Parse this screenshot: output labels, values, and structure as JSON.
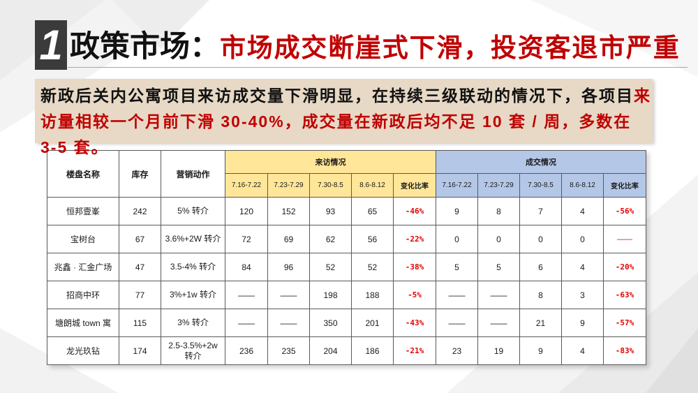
{
  "colors": {
    "red": "#c00000",
    "tan": "#e7d9c6",
    "visit_header": "#ffe699",
    "deal_header": "#b4c7e7",
    "dark": "#3b3b3b",
    "rate_red": "#e60000"
  },
  "header": {
    "number": "1",
    "title_black": "政策市场：",
    "title_red": "市场成交断崖式下滑，投资客退市严重"
  },
  "summary": {
    "line1_black": "新政后关内公寓项目来访成交量下滑明显，在持续三级联动的情况下，各项目",
    "line1_red": "来",
    "line2_red": "访量相较一个月前下滑 30-40%，成交量在新政后均不足 10 套 / 周，多数在",
    "line3_red": "3-5 套。"
  },
  "table": {
    "headers": {
      "name": "楼盘名称",
      "stock": "库存",
      "marketing": "营销动作",
      "visit_group": "来访情况",
      "deal_group": "成交情况",
      "periods": [
        "7.16-7.22",
        "7.23-7.29",
        "7.30-8.5",
        "8.6-8.12"
      ],
      "rate": "变化比率"
    },
    "rows": [
      {
        "name": "恒邦壹峯",
        "stock": "242",
        "marketing": "5% 转介",
        "visits": [
          "120",
          "152",
          "93",
          "65"
        ],
        "visit_rate": "-46%",
        "deals": [
          "9",
          "8",
          "7",
          "4"
        ],
        "deal_rate": "-56%"
      },
      {
        "name": "宝树台",
        "stock": "67",
        "marketing": "3.6%+2W 转介",
        "visits": [
          "72",
          "69",
          "62",
          "56"
        ],
        "visit_rate": "-22%",
        "deals": [
          "0",
          "0",
          "0",
          "0"
        ],
        "deal_rate": "——"
      },
      {
        "name": "兆鑫 · 汇金广场",
        "stock": "47",
        "marketing": "3.5-4% 转介",
        "visits": [
          "84",
          "96",
          "52",
          "52"
        ],
        "visit_rate": "-38%",
        "deals": [
          "5",
          "5",
          "6",
          "4"
        ],
        "deal_rate": "-20%"
      },
      {
        "name": "招商中环",
        "stock": "77",
        "marketing": "3%+1w 转介",
        "visits": [
          "——",
          "——",
          "198",
          "188"
        ],
        "visit_rate": "-5%",
        "deals": [
          "——",
          "——",
          "8",
          "3"
        ],
        "deal_rate": "-63%"
      },
      {
        "name": "塘朗城 town 寓",
        "stock": "115",
        "marketing": "3% 转介",
        "visits": [
          "——",
          "——",
          "350",
          "201"
        ],
        "visit_rate": "-43%",
        "deals": [
          "——",
          "——",
          "21",
          "9"
        ],
        "deal_rate": "-57%"
      },
      {
        "name": "龙光玖钻",
        "stock": "174",
        "marketing": "2.5-3.5%+2w 转介",
        "visits": [
          "236",
          "235",
          "204",
          "186"
        ],
        "visit_rate": "-21%",
        "deals": [
          "23",
          "19",
          "9",
          "4"
        ],
        "deal_rate": "-83%"
      }
    ]
  }
}
